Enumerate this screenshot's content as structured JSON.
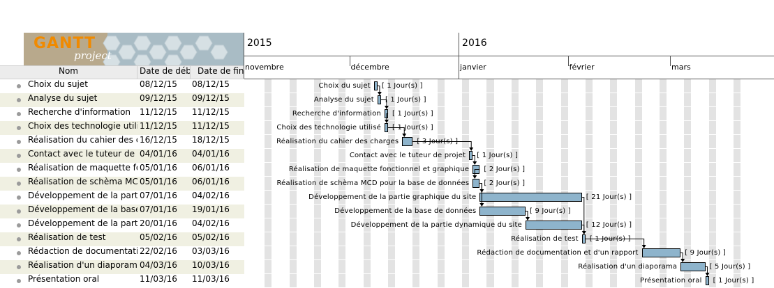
{
  "logo": {
    "name": "GANTT",
    "sub": "project"
  },
  "table": {
    "headers": {
      "name": "Nom",
      "start": "Date de déb...",
      "end": "Date de fin"
    },
    "rows": [
      {
        "name": "Choix du sujet",
        "start": "08/12/15",
        "end": "08/12/15"
      },
      {
        "name": "Analyse du sujet",
        "start": "09/12/15",
        "end": "09/12/15"
      },
      {
        "name": "Recherche d'information",
        "start": "11/12/15",
        "end": "11/12/15"
      },
      {
        "name": "Choix des technologie utilisé",
        "start": "11/12/15",
        "end": "11/12/15"
      },
      {
        "name": "Réalisation du cahier des ch...",
        "start": "16/12/15",
        "end": "18/12/15"
      },
      {
        "name": "Contact avec le tuteur de pr...",
        "start": "04/01/16",
        "end": "04/01/16"
      },
      {
        "name": "Réalisation  de maquette fo...",
        "start": "05/01/16",
        "end": "06/01/16"
      },
      {
        "name": "Réalisation de schèma MCD ...",
        "start": "05/01/16",
        "end": "06/01/16"
      },
      {
        "name": "Développement de la partie ...",
        "start": "07/01/16",
        "end": "04/02/16"
      },
      {
        "name": "Développement de la base d...",
        "start": "07/01/16",
        "end": "19/01/16"
      },
      {
        "name": "Développement de la partie ...",
        "start": "20/01/16",
        "end": "04/02/16"
      },
      {
        "name": "Réalisation de test",
        "start": "05/02/16",
        "end": "05/02/16"
      },
      {
        "name": "Rédaction de documentatio...",
        "start": "22/02/16",
        "end": "03/03/16"
      },
      {
        "name": "Réalisation d'un diaporama",
        "start": "04/03/16",
        "end": "10/03/16"
      },
      {
        "name": "Présentation oral",
        "start": "11/03/16",
        "end": "11/03/16"
      }
    ]
  },
  "timeline": {
    "years": [
      {
        "label": "2015"
      },
      {
        "label": "2016"
      }
    ],
    "months": [
      {
        "label": "novembre"
      },
      {
        "label": "décembre"
      },
      {
        "label": "janvier"
      },
      {
        "label": "février"
      },
      {
        "label": "mars"
      }
    ],
    "tasks": [
      {
        "label": "Choix du sujet",
        "duration": "[ 1 Jour(s) ]"
      },
      {
        "label": "Analyse du sujet",
        "duration": "[ 1 Jour(s) ]"
      },
      {
        "label": "Recherche d'information",
        "duration": "[ 1 Jour(s) ]"
      },
      {
        "label": "Choix des technologie utilisé",
        "duration": "[ 1 Jour(s) ]"
      },
      {
        "label": "Réalisation du cahier des charges",
        "duration": "[ 3 Jour(s) ]"
      },
      {
        "label": "Contact avec le tuteur de projet",
        "duration": "[ 1 Jour(s) ]"
      },
      {
        "label": "Réalisation  de maquette fonctionnel et graphique",
        "duration": "[ 2 Jour(s) ]"
      },
      {
        "label": "Réalisation de schèma MCD pour la base de données",
        "duration": "[ 2 Jour(s) ]"
      },
      {
        "label": "Développement de la partie graphique du site",
        "duration": "[ 21 Jour(s) ]"
      },
      {
        "label": "Développement de la base de données",
        "duration": "[ 9 Jour(s) ]"
      },
      {
        "label": "Développement de la partie dynamique du site",
        "duration": "[ 12 Jour(s) ]"
      },
      {
        "label": "Réalisation de test",
        "duration": "[ 1 Jour(s) ]"
      },
      {
        "label": "Rédaction de documentation et d'un rapport",
        "duration": "[ 9 Jour(s) ]"
      },
      {
        "label": "Réalisation d'un diaporama",
        "duration": "[ 5 Jour(s) ]"
      },
      {
        "label": "Présentation oral",
        "duration": "[ 1 Jour(s) ]"
      }
    ],
    "dependencies": [
      [
        0,
        1
      ],
      [
        1,
        2
      ],
      [
        2,
        3
      ],
      [
        3,
        4
      ],
      [
        4,
        5
      ],
      [
        5,
        6
      ],
      [
        6,
        7
      ],
      [
        7,
        8
      ],
      [
        7,
        9
      ],
      [
        9,
        10
      ],
      [
        8,
        11
      ],
      [
        10,
        11
      ],
      [
        11,
        12
      ],
      [
        12,
        13
      ],
      [
        13,
        14
      ]
    ]
  },
  "colors": {
    "bar": "#8eb4cc",
    "weekend": "#e3e3e3",
    "alt_row": "#f0f0e2",
    "logo_accent": "#f08a00"
  }
}
